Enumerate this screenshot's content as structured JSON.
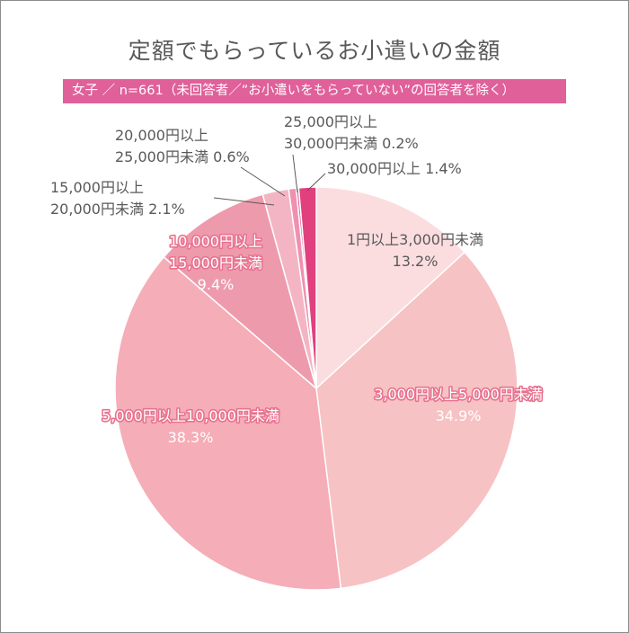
{
  "header": {
    "title": "定額でもらっているお小遣いの金額",
    "subtitle": "女子 ／ n=661（未回答者／”お小遣いをもらっていない”の回答者を除く）"
  },
  "colors": {
    "subtitle_bg": "#e0609a",
    "slices": [
      "#fbdde0",
      "#f6c2c3",
      "#f5adb7",
      "#ee9aad",
      "#f3b5c4",
      "#f090b0",
      "#e86296",
      "#e0407e"
    ]
  },
  "chart_data": {
    "type": "pie",
    "title": "定額でもらっているお小遣いの金額",
    "n": 661,
    "start": "12 o'clock",
    "direction": "clockwise",
    "slices": [
      {
        "label_lines": [
          "1円以上3,000円未満"
        ],
        "value_text": "13.2%",
        "value": 13.2
      },
      {
        "label_lines": [
          "3,000円以上5,000円未満"
        ],
        "value_text": "34.9%",
        "value": 34.9
      },
      {
        "label_lines": [
          "5,000円以上10,000円未満"
        ],
        "value_text": "38.3%",
        "value": 38.3
      },
      {
        "label_lines": [
          "10,000円以上",
          "15,000円未満"
        ],
        "value_text": "9.4%",
        "value": 9.4
      },
      {
        "label_lines": [
          "15,000円以上",
          "20,000円未満 2.1%"
        ],
        "value_text": "",
        "value": 2.1
      },
      {
        "label_lines": [
          "20,000円以上",
          "25,000円未満 0.6%"
        ],
        "value_text": "",
        "value": 0.6
      },
      {
        "label_lines": [
          "25,000円以上",
          "30,000円未満 0.2%"
        ],
        "value_text": "",
        "value": 0.2
      },
      {
        "label_lines": [
          "30,000円以上 1.4%"
        ],
        "value_text": "",
        "value": 1.4
      }
    ]
  }
}
